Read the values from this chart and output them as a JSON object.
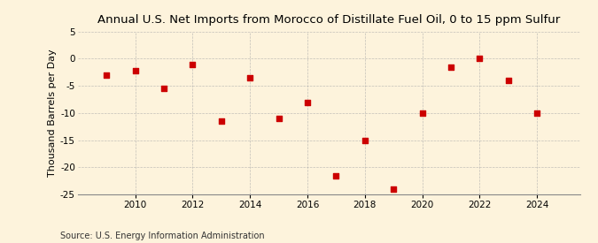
{
  "title": "Annual U.S. Net Imports from Morocco of Distillate Fuel Oil, 0 to 15 ppm Sulfur",
  "ylabel": "Thousand Barrels per Day",
  "source": "Source: U.S. Energy Information Administration",
  "years": [
    2009,
    2010,
    2011,
    2012,
    2013,
    2014,
    2015,
    2016,
    2017,
    2018,
    2019,
    2020,
    2021,
    2022,
    2023,
    2024
  ],
  "values": [
    -3.0,
    -2.2,
    -5.5,
    -1.0,
    -11.5,
    -3.5,
    -11.0,
    -8.0,
    -21.5,
    -15.0,
    -24.0,
    -10.0,
    -1.5,
    0.0,
    -4.0,
    -10.0
  ],
  "marker_color": "#cc0000",
  "background_color": "#fdf3dc",
  "grid_color": "#aaaaaa",
  "ylim": [
    -25,
    5
  ],
  "yticks": [
    -25,
    -20,
    -15,
    -10,
    -5,
    0,
    5
  ],
  "xlim": [
    2008.0,
    2025.5
  ],
  "xticks": [
    2010,
    2012,
    2014,
    2016,
    2018,
    2020,
    2022,
    2024
  ],
  "title_fontsize": 9.5,
  "label_fontsize": 8.0,
  "tick_fontsize": 7.5,
  "source_fontsize": 7.0
}
